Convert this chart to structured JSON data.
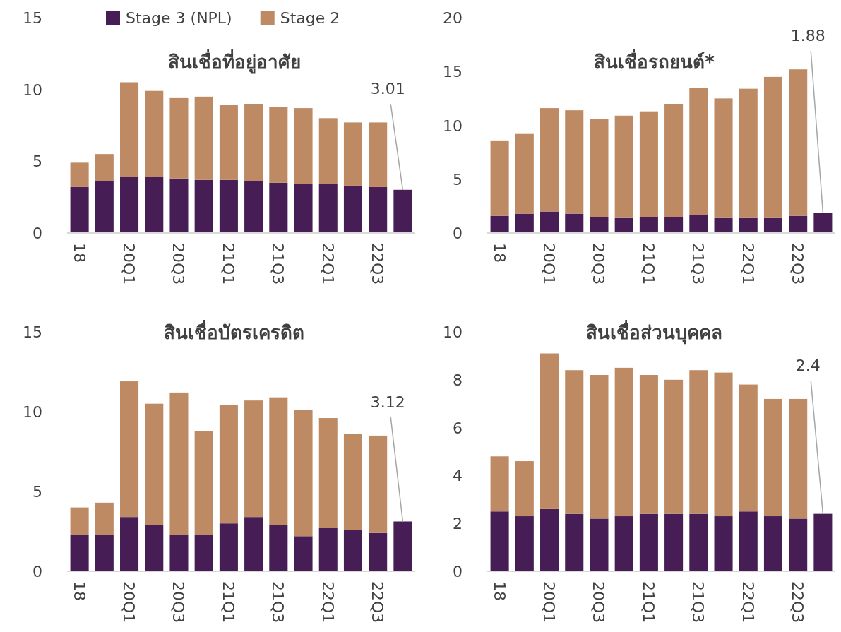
{
  "chart_data": [
    {
      "type": "bar",
      "stacked": true,
      "title": "สินเชื่อที่อยู่อาศัย",
      "legend": "top",
      "grid": false,
      "categories": [
        "18",
        null,
        "20Q1",
        null,
        "20Q3",
        null,
        "21Q1",
        null,
        "21Q3",
        null,
        "22Q1",
        null,
        "22Q3",
        null
      ],
      "ylim": [
        0,
        15
      ],
      "yticks": [
        0,
        5,
        10,
        15
      ],
      "series": [
        {
          "name": "Stage 3 (NPL)",
          "color": "#461e55",
          "values": [
            3.2,
            3.6,
            3.9,
            3.9,
            3.8,
            3.7,
            3.7,
            3.6,
            3.5,
            3.4,
            3.4,
            3.3,
            3.2,
            3.01
          ],
          "value_labels": [
            null,
            null,
            null,
            null,
            null,
            null,
            null,
            null,
            null,
            null,
            null,
            null,
            null,
            "3.01"
          ]
        },
        {
          "name": "Stage 2",
          "color": "#bd8a64",
          "values": [
            1.7,
            1.9,
            6.6,
            6.0,
            5.6,
            5.8,
            5.2,
            5.4,
            5.3,
            5.3,
            4.6,
            4.4,
            4.5,
            null
          ]
        }
      ]
    },
    {
      "type": "bar",
      "stacked": true,
      "title": "สินเชื่อรถยนต์*",
      "grid": false,
      "categories": [
        "18",
        null,
        "20Q1",
        null,
        "20Q3",
        null,
        "21Q1",
        null,
        "21Q3",
        null,
        "22Q1",
        null,
        "22Q3",
        null
      ],
      "ylim": [
        0,
        20
      ],
      "yticks": [
        0,
        5,
        10,
        15,
        20
      ],
      "series": [
        {
          "color": "#461e55",
          "values": [
            1.6,
            1.8,
            2.0,
            1.8,
            1.5,
            1.4,
            1.5,
            1.5,
            1.7,
            1.4,
            1.4,
            1.4,
            1.6,
            1.88
          ],
          "value_labels": [
            null,
            null,
            null,
            null,
            null,
            null,
            null,
            null,
            null,
            null,
            null,
            null,
            null,
            "1.88"
          ]
        },
        {
          "color": "#bd8a64",
          "values": [
            7.0,
            7.4,
            9.6,
            9.6,
            9.1,
            9.5,
            9.8,
            10.5,
            11.8,
            11.1,
            12.0,
            13.1,
            13.6,
            null
          ]
        }
      ]
    },
    {
      "type": "bar",
      "stacked": true,
      "title": "สินเชื่อบัตรเครดิต",
      "grid": false,
      "categories": [
        "18",
        null,
        "20Q1",
        null,
        "20Q3",
        null,
        "21Q1",
        null,
        "21Q3",
        null,
        "22Q1",
        null,
        "22Q3",
        null
      ],
      "ylim": [
        0,
        15
      ],
      "yticks": [
        0,
        5,
        10,
        15
      ],
      "series": [
        {
          "color": "#461e55",
          "values": [
            2.3,
            2.3,
            3.4,
            2.9,
            2.3,
            2.3,
            3.0,
            3.4,
            2.9,
            2.2,
            2.7,
            2.6,
            2.4,
            3.12
          ],
          "value_labels": [
            null,
            null,
            null,
            null,
            null,
            null,
            null,
            null,
            null,
            null,
            null,
            null,
            null,
            "3.12"
          ]
        },
        {
          "color": "#bd8a64",
          "values": [
            1.7,
            2.0,
            8.5,
            7.6,
            8.9,
            6.5,
            7.4,
            7.3,
            8.0,
            7.9,
            6.9,
            6.0,
            6.1,
            null
          ]
        }
      ]
    },
    {
      "type": "bar",
      "stacked": true,
      "title": "สินเชื่อส่วนบุคคล",
      "grid": false,
      "categories": [
        "18",
        null,
        "20Q1",
        null,
        "20Q3",
        null,
        "21Q1",
        null,
        "21Q3",
        null,
        "22Q1",
        null,
        "22Q3",
        null
      ],
      "ylim": [
        0,
        10
      ],
      "yticks": [
        0,
        2,
        4,
        6,
        8,
        10
      ],
      "series": [
        {
          "color": "#461e55",
          "values": [
            2.5,
            2.3,
            2.6,
            2.4,
            2.2,
            2.3,
            2.4,
            2.4,
            2.4,
            2.3,
            2.5,
            2.3,
            2.2,
            2.4
          ],
          "value_labels": [
            null,
            null,
            null,
            null,
            null,
            null,
            null,
            null,
            null,
            null,
            null,
            null,
            null,
            "2.4"
          ]
        },
        {
          "color": "#bd8a64",
          "values": [
            2.3,
            2.3,
            6.5,
            6.0,
            6.0,
            6.2,
            5.8,
            5.6,
            6.0,
            6.0,
            5.3,
            4.9,
            5.0,
            null
          ]
        }
      ]
    }
  ]
}
